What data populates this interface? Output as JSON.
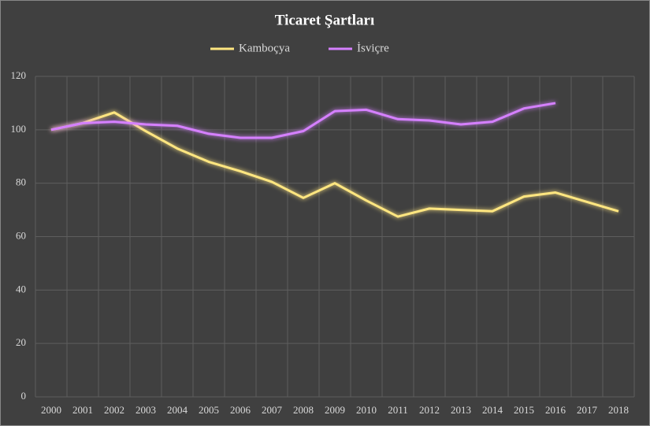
{
  "chart_data": {
    "type": "line",
    "title": "Ticaret  Şartları",
    "categories": [
      "2000",
      "2001",
      "2002",
      "2003",
      "2004",
      "2005",
      "2006",
      "2007",
      "2008",
      "2009",
      "2010",
      "2011",
      "2012",
      "2013",
      "2014",
      "2015",
      "2016",
      "2017",
      "2018"
    ],
    "series": [
      {
        "name": "Kamboçya",
        "color": "#ffe680",
        "values": [
          100,
          102.5,
          106.5,
          99.5,
          93,
          88,
          84.5,
          80.5,
          74.5,
          80,
          73.5,
          67.5,
          70.5,
          70,
          69.5,
          75,
          76.5,
          73,
          69.5
        ]
      },
      {
        "name": "İsviçre",
        "color": "#d580ff",
        "values": [
          100,
          102.5,
          103,
          102,
          101.5,
          98.5,
          97,
          97,
          99.5,
          107,
          107.5,
          104,
          103.5,
          102,
          103,
          108,
          110,
          null,
          null
        ]
      }
    ],
    "ylim": [
      0,
      120
    ],
    "yticks": [
      0,
      20,
      40,
      60,
      80,
      100,
      120
    ],
    "grid": true,
    "legend": "top"
  }
}
